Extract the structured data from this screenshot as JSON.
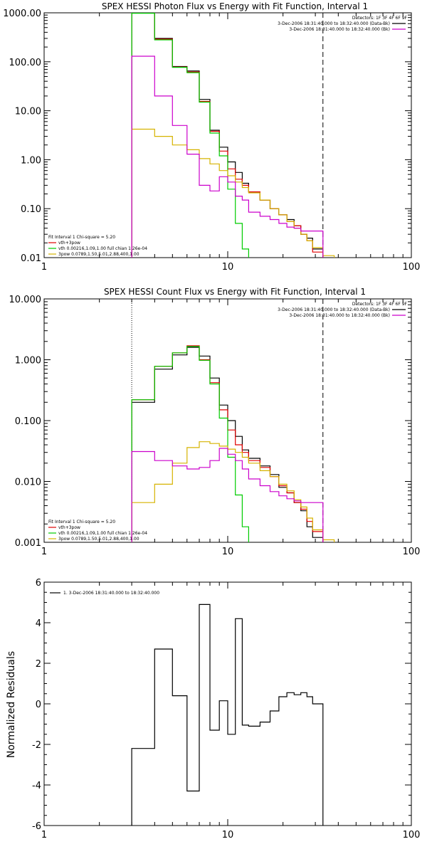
{
  "chart_data": [
    {
      "type": "line",
      "title": "SPEX HESSI Photon Flux vs Energy with Fit Function, Interval 1",
      "xlabel": "",
      "ylabel": "",
      "xscale": "log",
      "yscale": "log",
      "xlim": [
        1,
        100
      ],
      "ylim": [
        0.01,
        1000
      ],
      "x_tick_labels": [
        "1",
        "10",
        "100"
      ],
      "y_tick_labels": [
        "0.01",
        "0.10",
        "1.00",
        "10.00",
        "100.00",
        "1000.00"
      ],
      "x_tick_values": [
        1,
        10,
        100
      ],
      "y_tick_values": [
        0.01,
        0.1,
        1,
        10,
        100,
        1000
      ],
      "info_lines": [
        "Detectors: 1F 3F 4F 6F 9F",
        "3-Dec-2006 18:31:40.000 to 18:32:40.000 (Data-Bk)",
        "3-Dec-2006 18:31:40.000 to 18:32:40.000 (Bk)"
      ],
      "legend_lines": [
        "Fit Interval 1    Chi-square = 5.20",
        "vth+3pow",
        "vth 0.00216,1.09,1.00  full chian 1.26e-04",
        "3pow 0.0789,1.50,5.01,2.88,400,1.00"
      ],
      "legend_colors": [
        "#000000",
        "#e00000",
        "#00cc00",
        "#d6b300"
      ],
      "vlines": [
        {
          "x": 3.0,
          "style": "dotted",
          "color": "#ff8c00"
        },
        {
          "x": 33,
          "style": "dashed",
          "color": "#000000"
        }
      ],
      "bin_edges": [
        3,
        4,
        5,
        6,
        7,
        8,
        9,
        10,
        11,
        12,
        13,
        15,
        17,
        19,
        21,
        23,
        25,
        27,
        29,
        33,
        38,
        44
      ],
      "series": [
        {
          "name": "3-Dec-2006 18:31:40.000 to 18:32:40.000 (Data-Bk)",
          "color": "#000000",
          "step_start": 3,
          "values": [
            1000,
            300,
            80,
            65,
            17,
            4.0,
            1.8,
            0.9,
            0.55,
            0.33,
            0.22,
            0.15,
            0.1,
            0.075,
            0.06,
            0.045,
            0.03,
            0.025,
            0.015
          ]
        },
        {
          "name": "vth+3pow",
          "color": "#e00000",
          "step_start": 3,
          "values": [
            990,
            290,
            78,
            62,
            15.5,
            3.8,
            1.5,
            0.65,
            0.4,
            0.3,
            0.22,
            0.15,
            0.1,
            0.075,
            0.055,
            0.045,
            0.03,
            0.022,
            0.013
          ]
        },
        {
          "name": "vth",
          "color": "#00cc00",
          "step_start": 3,
          "values": [
            980,
            280,
            77,
            60,
            15,
            3.5,
            1.2,
            0.25,
            0.05,
            0.015,
            0.006
          ]
        },
        {
          "name": "3pow",
          "color": "#d6b300",
          "step_start": 3,
          "values": [
            4.2,
            3.0,
            2.0,
            1.6,
            1.05,
            0.82,
            0.6,
            0.47,
            0.35,
            0.27,
            0.21,
            0.15,
            0.1,
            0.075,
            0.055,
            0.04,
            0.03,
            0.022,
            0.016,
            0.011,
            0.008
          ]
        },
        {
          "name": "3-Dec-2006 18:31:40.000 to 18:32:40.000 (Bk)",
          "color": "#cc00cc",
          "step_start": 3,
          "values": [
            130,
            20,
            5.0,
            1.3,
            0.3,
            0.23,
            0.45,
            0.35,
            0.18,
            0.15,
            0.085,
            0.07,
            0.06,
            0.05,
            0.042,
            0.04,
            0.035,
            0.035,
            0.035
          ]
        }
      ]
    },
    {
      "type": "line",
      "title": "SPEX HESSI Count Flux vs Energy with Fit Function, Interval 1",
      "xlabel": "",
      "ylabel": "",
      "xscale": "log",
      "yscale": "log",
      "xlim": [
        1,
        100
      ],
      "ylim": [
        0.001,
        10
      ],
      "x_tick_labels": [
        "1",
        "10",
        "100"
      ],
      "y_tick_labels": [
        "0.001",
        "0.010",
        "0.100",
        "1.000",
        "10.000"
      ],
      "x_tick_values": [
        1,
        10,
        100
      ],
      "y_tick_values": [
        0.001,
        0.01,
        0.1,
        1,
        10
      ],
      "info_lines": [
        "Detectors: 1F 3F 4F 6F 9F",
        "3-Dec-2006 18:31:40.000 to 18:32:40.000 (Data-Bk)",
        "3-Dec-2006 18:31:40.000 to 18:32:40.000 (Bk)"
      ],
      "legend_lines": [
        "Fit Interval 1    Chi-square = 5.20",
        "vth+3pow",
        "vth 0.00216,1.09,1.00  full chian 1.26e-04",
        "3pow 0.0789,1.50,5.01,2.88,400,1.00"
      ],
      "legend_colors": [
        "#000000",
        "#e00000",
        "#00cc00",
        "#d6b300"
      ],
      "vlines": [
        {
          "x": 3.0,
          "style": "dotted",
          "color": "#000000"
        },
        {
          "x": 33,
          "style": "dashed",
          "color": "#000000"
        }
      ],
      "bin_edges": [
        3,
        4,
        5,
        6,
        7,
        8,
        9,
        10,
        11,
        12,
        13,
        15,
        17,
        19,
        21,
        23,
        25,
        27,
        29,
        33,
        38,
        44
      ],
      "series": [
        {
          "name": "3-Dec-2006 18:31:40.000 to 18:32:40.000 (Data-Bk)",
          "color": "#000000",
          "step_start": 3,
          "values": [
            0.2,
            0.7,
            1.2,
            1.6,
            1.15,
            0.5,
            0.18,
            0.1,
            0.055,
            0.033,
            0.024,
            0.018,
            0.013,
            0.008,
            0.0065,
            0.0045,
            0.0033,
            0.0018,
            0.0012
          ]
        },
        {
          "name": "vth+3pow",
          "color": "#e00000",
          "step_start": 3,
          "values": [
            0.22,
            0.78,
            1.3,
            1.7,
            1.0,
            0.42,
            0.15,
            0.07,
            0.04,
            0.03,
            0.022,
            0.017,
            0.012,
            0.0085,
            0.0065,
            0.0045,
            0.0035,
            0.0022,
            0.0015
          ]
        },
        {
          "name": "vth",
          "color": "#00cc00",
          "step_start": 3,
          "values": [
            0.22,
            0.78,
            1.3,
            1.65,
            0.98,
            0.4,
            0.11,
            0.025,
            0.006,
            0.0018,
            0.0009
          ]
        },
        {
          "name": "3pow",
          "color": "#d6b300",
          "step_start": 3,
          "values": [
            0.0045,
            0.009,
            0.02,
            0.036,
            0.045,
            0.042,
            0.038,
            0.034,
            0.03,
            0.025,
            0.02,
            0.015,
            0.012,
            0.009,
            0.007,
            0.005,
            0.0038,
            0.0025,
            0.0016,
            0.0011,
            0.0008
          ]
        },
        {
          "name": "3-Dec-2006 18:31:40.000 to 18:32:40.000 (Bk)",
          "color": "#cc00cc",
          "step_start": 3,
          "values": [
            0.031,
            0.022,
            0.018,
            0.016,
            0.017,
            0.022,
            0.035,
            0.028,
            0.022,
            0.016,
            0.011,
            0.0085,
            0.0068,
            0.0058,
            0.0052,
            0.0048,
            0.0045,
            0.0045,
            0.0045
          ]
        }
      ]
    },
    {
      "type": "line",
      "title": "",
      "xlabel": "",
      "ylabel": "Normalized Residuals",
      "xscale": "log",
      "yscale": "linear",
      "xlim": [
        1,
        100
      ],
      "ylim": [
        -6,
        6
      ],
      "x_tick_labels": [
        "1",
        "10",
        "100"
      ],
      "y_tick_labels": [
        "-6",
        "-4",
        "-2",
        "0",
        "2",
        "4",
        "6"
      ],
      "x_tick_values": [
        1,
        10,
        100
      ],
      "y_tick_values": [
        -6,
        -4,
        -2,
        0,
        2,
        4,
        6
      ],
      "legend_lines": [
        "1.  3-Dec-2006 18:31:40.000 to 18:32:40.000"
      ],
      "bin_edges": [
        3,
        4,
        5,
        6,
        7,
        8,
        9,
        10,
        11,
        12,
        13,
        15,
        17,
        19,
        21,
        23,
        25,
        27,
        29,
        33
      ],
      "series": [
        {
          "name": "1.  3-Dec-2006 18:31:40.000 to 18:32:40.000",
          "color": "#000000",
          "step_start": 3,
          "values": [
            -2.2,
            2.7,
            0.4,
            -4.3,
            4.9,
            -1.3,
            0.15,
            -1.5,
            4.2,
            -1.05,
            -1.1,
            -0.9,
            -0.35,
            0.35,
            0.55,
            0.45,
            0.55,
            0.35,
            0.0
          ]
        }
      ]
    }
  ]
}
